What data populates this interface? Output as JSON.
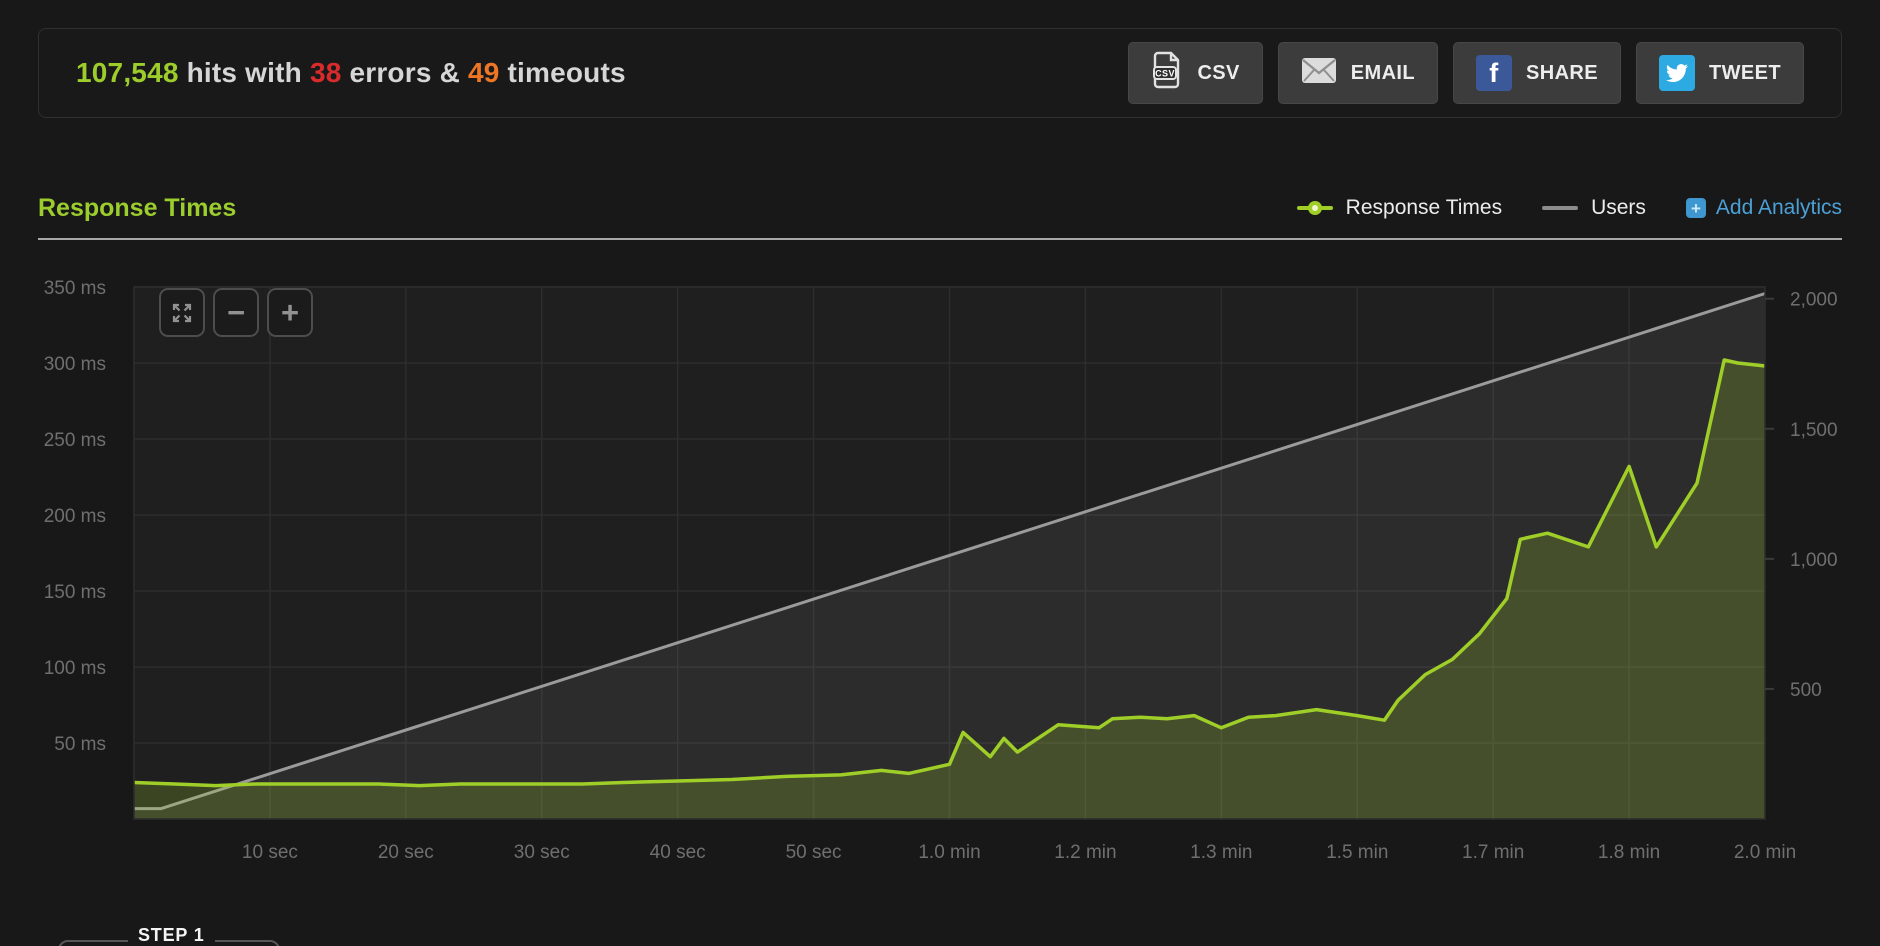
{
  "stats": {
    "hits": "107,548",
    "hits_suffix": " hits with ",
    "errors": "38",
    "errors_suffix": " errors & ",
    "timeouts": "49",
    "timeouts_suffix": " timeouts"
  },
  "toolbar": {
    "buttons": [
      {
        "id": "csv",
        "label": "CSV",
        "icon": "csv-file-icon"
      },
      {
        "id": "email",
        "label": "EMAIL",
        "icon": "envelope-icon"
      },
      {
        "id": "share",
        "label": "SHARE",
        "icon": "facebook-icon",
        "icon_glyph": "f"
      },
      {
        "id": "tweet",
        "label": "TWEET",
        "icon": "twitter-icon"
      }
    ]
  },
  "section": {
    "title": "Response Times"
  },
  "legend": {
    "response_times": "Response Times",
    "users": "Users",
    "add_analytics": "Add Analytics",
    "add_icon_glyph": "+"
  },
  "chart_controls": {
    "zoom_out_glyph": "−",
    "zoom_in_glyph": "+"
  },
  "footer": {
    "step_label": "STEP 1"
  },
  "colors": {
    "accent_green": "#9ccd2a",
    "error_red": "#d92b2b",
    "timeout_orange": "#ee7624",
    "link_blue": "#4ba0d6",
    "facebook_blue": "#3b5998",
    "twitter_blue": "#2caae1",
    "users_gray": "#9b9b9b"
  },
  "chart_data": {
    "type": "line",
    "title": "Response Times",
    "grid": true,
    "legend_position": "top-right",
    "x_range_seconds": [
      0,
      120
    ],
    "x_ticks": {
      "seconds": [
        10,
        20,
        30,
        40,
        50,
        60,
        70,
        80,
        90,
        100,
        110,
        120
      ],
      "labels": [
        "10 sec",
        "20 sec",
        "30 sec",
        "40 sec",
        "50 sec",
        "1.0 min",
        "1.2 min",
        "1.3 min",
        "1.5 min",
        "1.7 min",
        "1.8 min",
        "2.0 min"
      ]
    },
    "left_axis": {
      "unit": "ms",
      "range": [
        0,
        350
      ],
      "tick_values": [
        50,
        100,
        150,
        200,
        250,
        300,
        350
      ],
      "tick_labels": [
        "50 ms",
        "100 ms",
        "150 ms",
        "200 ms",
        "250 ms",
        "300 ms",
        "350 ms"
      ]
    },
    "right_axis": {
      "unit": "users",
      "range": [
        0,
        2045
      ],
      "tick_values": [
        500,
        1000,
        1500,
        2000
      ],
      "tick_labels": [
        "500",
        "1,000",
        "1,500",
        "2,000"
      ]
    },
    "series": [
      {
        "name": "Response Times",
        "axis": "left",
        "color": "#9fce28",
        "fill": "rgba(158,206,40,0.22)",
        "points": [
          [
            0,
            24
          ],
          [
            3,
            23
          ],
          [
            6,
            22
          ],
          [
            9,
            23
          ],
          [
            12,
            23
          ],
          [
            15,
            23
          ],
          [
            18,
            23
          ],
          [
            21,
            22
          ],
          [
            24,
            23
          ],
          [
            27,
            23
          ],
          [
            30,
            23
          ],
          [
            33,
            23
          ],
          [
            36,
            24
          ],
          [
            40,
            25
          ],
          [
            44,
            26
          ],
          [
            48,
            28
          ],
          [
            52,
            29
          ],
          [
            55,
            32
          ],
          [
            57,
            30
          ],
          [
            60,
            36
          ],
          [
            61,
            57
          ],
          [
            63,
            41
          ],
          [
            64,
            53
          ],
          [
            65,
            44
          ],
          [
            68,
            62
          ],
          [
            71,
            60
          ],
          [
            72,
            66
          ],
          [
            74,
            67
          ],
          [
            76,
            66
          ],
          [
            78,
            68
          ],
          [
            80,
            60
          ],
          [
            82,
            67
          ],
          [
            84,
            68
          ],
          [
            87,
            72
          ],
          [
            90,
            68
          ],
          [
            92,
            65
          ],
          [
            93,
            78
          ],
          [
            95,
            95
          ],
          [
            97,
            105
          ],
          [
            99,
            122
          ],
          [
            101,
            145
          ],
          [
            102,
            184
          ],
          [
            104,
            188
          ],
          [
            107,
            179
          ],
          [
            110,
            232
          ],
          [
            112,
            179
          ],
          [
            115,
            221
          ],
          [
            117,
            302
          ],
          [
            118,
            300
          ],
          [
            120,
            298
          ]
        ]
      },
      {
        "name": "Users",
        "axis": "right",
        "color": "#9b9b9b",
        "fill": "rgba(165,165,165,0.10)",
        "points": [
          [
            0,
            40
          ],
          [
            2,
            40
          ],
          [
            120,
            2020
          ]
        ]
      }
    ]
  }
}
